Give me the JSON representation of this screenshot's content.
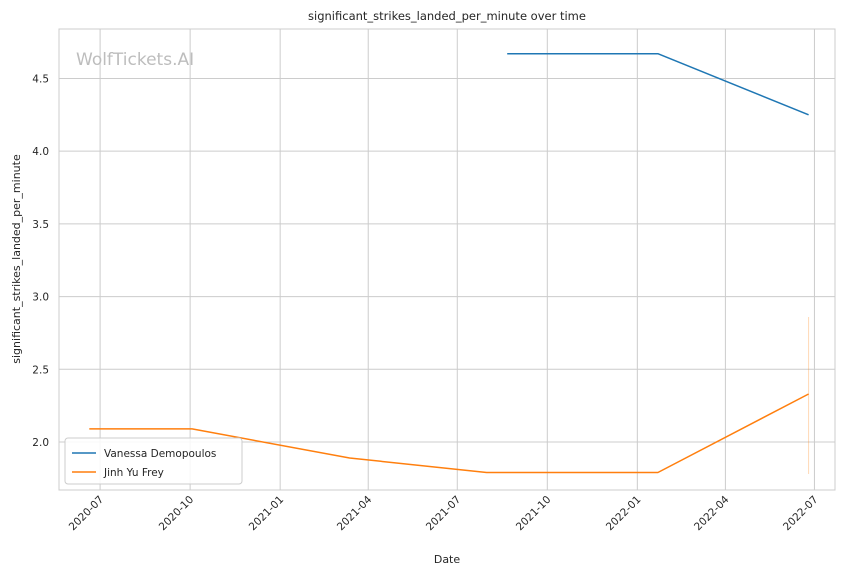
{
  "chart_data": {
    "type": "line",
    "title": "significant_strikes_landed_per_minute over time",
    "xlabel": "Date",
    "ylabel": "significant_strikes_landed_per_minute",
    "watermark": "WolfTickets.AI",
    "x_ticks": [
      "2020-07",
      "2020-10",
      "2021-01",
      "2021-04",
      "2021-07",
      "2021-10",
      "2022-01",
      "2022-04",
      "2022-07"
    ],
    "y_ticks": [
      "2.0",
      "2.5",
      "3.0",
      "3.5",
      "4.0",
      "4.5"
    ],
    "ylim": [
      1.67,
      4.84
    ],
    "xlim": [
      "2020-05-20",
      "2022-07-22"
    ],
    "grid": true,
    "legend_position": "lower-left",
    "series": [
      {
        "name": "Vanessa Demopoulos",
        "color": "#1f77b4",
        "points": [
          {
            "x": "2021-08-21",
            "y": 4.67
          },
          {
            "x": "2022-01-22",
            "y": 4.67
          },
          {
            "x": "2022-06-25",
            "y": 4.25
          }
        ]
      },
      {
        "name": "Jinh Yu Frey",
        "color": "#ff7f0e",
        "points": [
          {
            "x": "2020-06-20",
            "y": 2.09
          },
          {
            "x": "2020-10-03",
            "y": 2.09
          },
          {
            "x": "2021-03-13",
            "y": 1.89
          },
          {
            "x": "2021-07-31",
            "y": 1.79
          },
          {
            "x": "2022-01-22",
            "y": 1.79
          },
          {
            "x": "2022-06-25",
            "y": 2.33
          }
        ]
      }
    ],
    "error_bar": {
      "x": "2022-06-25",
      "y_low": 1.78,
      "y_high": 2.86,
      "color": "#ff7f0e"
    }
  }
}
